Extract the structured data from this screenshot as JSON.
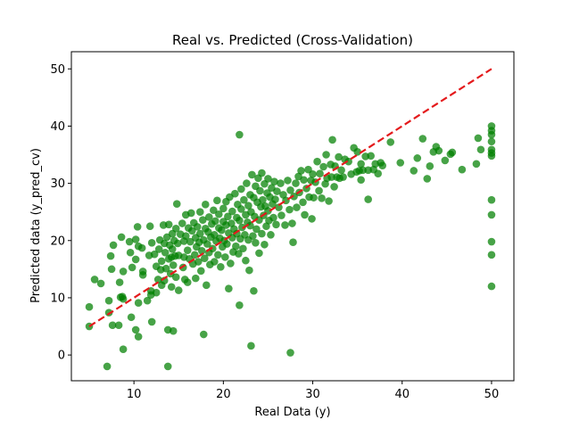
{
  "chart_data": {
    "type": "scatter",
    "title": "Real vs. Predicted (Cross-Validation)",
    "xlabel": "Real Data (y)",
    "ylabel": "Predicted data (y_pred_cv)",
    "xlim": [
      3,
      52.5
    ],
    "ylim": [
      -4.5,
      53
    ],
    "xticks": [
      10,
      20,
      30,
      40,
      50
    ],
    "yticks": [
      0,
      10,
      20,
      30,
      40,
      50
    ],
    "grid": false,
    "colors": {
      "points": "#008000",
      "reference": "#e41a1c"
    },
    "series": [
      {
        "kind": "points",
        "points": [
          [
            5.0,
            8.4
          ],
          [
            5.0,
            5.0
          ],
          [
            5.6,
            13.2
          ],
          [
            6.3,
            12.5
          ],
          [
            7.0,
            -2.0
          ],
          [
            7.2,
            9.5
          ],
          [
            7.2,
            7.4
          ],
          [
            7.4,
            17.3
          ],
          [
            7.5,
            15.0
          ],
          [
            7.6,
            5.2
          ],
          [
            7.7,
            19.2
          ],
          [
            8.3,
            5.2
          ],
          [
            8.4,
            12.7
          ],
          [
            8.5,
            10.1
          ],
          [
            8.6,
            20.6
          ],
          [
            8.7,
            10.2
          ],
          [
            8.8,
            14.6
          ],
          [
            8.8,
            9.8
          ],
          [
            8.8,
            1.0
          ],
          [
            9.5,
            19.8
          ],
          [
            9.6,
            17.9
          ],
          [
            9.7,
            6.6
          ],
          [
            9.8,
            15.3
          ],
          [
            10.2,
            4.4
          ],
          [
            10.2,
            20.2
          ],
          [
            10.2,
            16.7
          ],
          [
            10.4,
            22.4
          ],
          [
            10.5,
            19.0
          ],
          [
            10.5,
            3.2
          ],
          [
            10.5,
            9.1
          ],
          [
            10.9,
            18.7
          ],
          [
            11.0,
            14.6
          ],
          [
            11.0,
            14.0
          ],
          [
            11.5,
            9.5
          ],
          [
            11.7,
            17.4
          ],
          [
            11.8,
            22.5
          ],
          [
            11.9,
            11.2
          ],
          [
            11.9,
            10.5
          ],
          [
            12.0,
            19.6
          ],
          [
            12.0,
            5.8
          ],
          [
            12.3,
            17.6
          ],
          [
            12.5,
            10.9
          ],
          [
            12.5,
            15.5
          ],
          [
            12.7,
            13.2
          ],
          [
            12.8,
            18.5
          ],
          [
            12.9,
            20.1
          ],
          [
            13.0,
            14.9
          ],
          [
            13.1,
            16.4
          ],
          [
            13.1,
            12.2
          ],
          [
            13.3,
            22.7
          ],
          [
            13.4,
            19.5
          ],
          [
            13.4,
            13.0
          ],
          [
            13.5,
            17.9
          ],
          [
            13.6,
            15.1
          ],
          [
            13.7,
            20.6
          ],
          [
            13.8,
            4.4
          ],
          [
            13.8,
            -2.0
          ],
          [
            13.9,
            22.8
          ],
          [
            13.9,
            16.8
          ],
          [
            14.0,
            19.2
          ],
          [
            14.1,
            14.2
          ],
          [
            14.2,
            17.1
          ],
          [
            14.2,
            11.9
          ],
          [
            14.3,
            21.2
          ],
          [
            14.3,
            18.5
          ],
          [
            14.4,
            4.2
          ],
          [
            14.4,
            15.7
          ],
          [
            14.5,
            20.0
          ],
          [
            14.6,
            17.3
          ],
          [
            14.7,
            13.6
          ],
          [
            14.7,
            22.1
          ],
          [
            14.8,
            26.4
          ],
          [
            14.9,
            19.5
          ],
          [
            15.0,
            11.3
          ],
          [
            15.0,
            17.4
          ],
          [
            15.2,
            21.1
          ],
          [
            15.4,
            23.0
          ],
          [
            15.5,
            15.3
          ],
          [
            15.6,
            19.9
          ],
          [
            15.6,
            17.1
          ],
          [
            15.7,
            13.2
          ],
          [
            15.8,
            20.8
          ],
          [
            15.8,
            24.5
          ],
          [
            16.0,
            18.3
          ],
          [
            16.0,
            12.7
          ],
          [
            16.1,
            22.2
          ],
          [
            16.2,
            16.8
          ],
          [
            16.3,
            19.8
          ],
          [
            16.4,
            24.8
          ],
          [
            16.5,
            21.7
          ],
          [
            16.6,
            15.9
          ],
          [
            16.7,
            23.1
          ],
          [
            16.8,
            17.5
          ],
          [
            16.9,
            20.5
          ],
          [
            16.9,
            13.4
          ],
          [
            17.0,
            18.9
          ],
          [
            17.1,
            22.4
          ],
          [
            17.2,
            16.3
          ],
          [
            17.3,
            19.7
          ],
          [
            17.4,
            25.0
          ],
          [
            17.4,
            21.2
          ],
          [
            17.5,
            14.7
          ],
          [
            17.6,
            18.2
          ],
          [
            17.7,
            23.6
          ],
          [
            17.8,
            20.1
          ],
          [
            17.8,
            3.6
          ],
          [
            17.9,
            16.9
          ],
          [
            18.0,
            22.1
          ],
          [
            18.0,
            26.3
          ],
          [
            18.1,
            12.2
          ],
          [
            18.2,
            19.4
          ],
          [
            18.3,
            21.5
          ],
          [
            18.4,
            17.9
          ],
          [
            18.4,
            24.1
          ],
          [
            18.5,
            15.8
          ],
          [
            18.6,
            20.6
          ],
          [
            18.7,
            22.9
          ],
          [
            18.8,
            18.6
          ],
          [
            18.9,
            25.3
          ],
          [
            19.0,
            21.0
          ],
          [
            19.0,
            16.3
          ],
          [
            19.1,
            23.4
          ],
          [
            19.2,
            19.9
          ],
          [
            19.3,
            27.0
          ],
          [
            19.4,
            17.5
          ],
          [
            19.5,
            22.2
          ],
          [
            19.5,
            24.6
          ],
          [
            19.6,
            20.4
          ],
          [
            19.7,
            15.4
          ],
          [
            19.8,
            21.8
          ],
          [
            19.9,
            18.9
          ],
          [
            20.0,
            25.6
          ],
          [
            20.0,
            23.3
          ],
          [
            20.1,
            20.0
          ],
          [
            20.2,
            17.1
          ],
          [
            20.3,
            22.7
          ],
          [
            20.3,
            26.8
          ],
          [
            20.4,
            19.4
          ],
          [
            20.5,
            24.2
          ],
          [
            20.6,
            21.3
          ],
          [
            20.6,
            11.6
          ],
          [
            20.7,
            27.6
          ],
          [
            20.8,
            16.0
          ],
          [
            20.9,
            23.0
          ],
          [
            21.0,
            20.5
          ],
          [
            21.0,
            25.1
          ],
          [
            21.1,
            18.0
          ],
          [
            21.2,
            22.0
          ],
          [
            21.3,
            28.2
          ],
          [
            21.4,
            19.0
          ],
          [
            21.5,
            24.0
          ],
          [
            21.5,
            21.2
          ],
          [
            21.6,
            26.3
          ],
          [
            21.7,
            17.7
          ],
          [
            21.8,
            38.5
          ],
          [
            21.8,
            23.5
          ],
          [
            21.8,
            8.7
          ],
          [
            21.9,
            20.3
          ],
          [
            22.0,
            29.0
          ],
          [
            22.0,
            25.5
          ],
          [
            22.1,
            22.3
          ],
          [
            22.2,
            18.6
          ],
          [
            22.3,
            27.1
          ],
          [
            22.4,
            21.0
          ],
          [
            22.5,
            24.5
          ],
          [
            22.5,
            16.5
          ],
          [
            22.6,
            30.0
          ],
          [
            22.7,
            23.2
          ],
          [
            22.8,
            26.1
          ],
          [
            22.8,
            20.1
          ],
          [
            22.9,
            14.8
          ],
          [
            23.0,
            28.0
          ],
          [
            23.0,
            22.6
          ],
          [
            23.1,
            1.6
          ],
          [
            23.1,
            25.0
          ],
          [
            23.2,
            31.5
          ],
          [
            23.3,
            20.8
          ],
          [
            23.4,
            27.5
          ],
          [
            23.4,
            11.2
          ],
          [
            23.5,
            24.2
          ],
          [
            23.6,
            29.5
          ],
          [
            23.6,
            19.6
          ],
          [
            23.7,
            22.0
          ],
          [
            23.8,
            26.7
          ],
          [
            23.9,
            30.9
          ],
          [
            24.0,
            23.6
          ],
          [
            24.0,
            17.8
          ],
          [
            24.1,
            28.7
          ],
          [
            24.2,
            25.9
          ],
          [
            24.3,
            21.2
          ],
          [
            24.3,
            31.8
          ],
          [
            24.4,
            27.1
          ],
          [
            24.5,
            24.4
          ],
          [
            24.6,
            29.9
          ],
          [
            24.6,
            19.3
          ],
          [
            24.7,
            26.0
          ],
          [
            24.8,
            22.5
          ],
          [
            24.9,
            28.3
          ],
          [
            25.0,
            30.8
          ],
          [
            25.0,
            25.2
          ],
          [
            25.1,
            23.5
          ],
          [
            25.2,
            27.6
          ],
          [
            25.3,
            21.0
          ],
          [
            25.4,
            29.2
          ],
          [
            25.5,
            26.4
          ],
          [
            25.6,
            24.0
          ],
          [
            25.7,
            30.3
          ],
          [
            25.8,
            27.2
          ],
          [
            25.9,
            22.8
          ],
          [
            26.0,
            28.6
          ],
          [
            26.2,
            25.8
          ],
          [
            26.4,
            30.0
          ],
          [
            26.5,
            24.4
          ],
          [
            26.7,
            28.0
          ],
          [
            26.9,
            22.7
          ],
          [
            27.0,
            27.0
          ],
          [
            27.2,
            30.5
          ],
          [
            27.4,
            25.4
          ],
          [
            27.5,
            0.4
          ],
          [
            27.5,
            28.8
          ],
          [
            27.7,
            23.0
          ],
          [
            27.8,
            19.7
          ],
          [
            27.9,
            27.7
          ],
          [
            28.1,
            30.0
          ],
          [
            28.2,
            25.8
          ],
          [
            28.4,
            31.2
          ],
          [
            28.5,
            28.4
          ],
          [
            28.7,
            32.2
          ],
          [
            28.9,
            26.7
          ],
          [
            29.0,
            30.6
          ],
          [
            29.1,
            24.5
          ],
          [
            29.3,
            29.1
          ],
          [
            29.5,
            32.4
          ],
          [
            29.6,
            27.6
          ],
          [
            29.8,
            30.5
          ],
          [
            29.9,
            23.8
          ],
          [
            30.0,
            31.6
          ],
          [
            30.1,
            27.5
          ],
          [
            30.3,
            30.2
          ],
          [
            30.5,
            33.8
          ],
          [
            30.7,
            28.7
          ],
          [
            30.8,
            31.7
          ],
          [
            31.0,
            27.4
          ],
          [
            31.2,
            32.9
          ],
          [
            31.4,
            29.9
          ],
          [
            31.5,
            35.0
          ],
          [
            31.6,
            30.9
          ],
          [
            31.8,
            26.9
          ],
          [
            32.0,
            33.3
          ],
          [
            32.1,
            31.1
          ],
          [
            32.2,
            37.6
          ],
          [
            32.4,
            29.4
          ],
          [
            32.5,
            33.0
          ],
          [
            32.7,
            31.1
          ],
          [
            32.9,
            34.6
          ],
          [
            33.0,
            30.9
          ],
          [
            33.2,
            32.3
          ],
          [
            33.4,
            31.1
          ],
          [
            33.6,
            34.2
          ],
          [
            34.0,
            33.8
          ],
          [
            34.3,
            31.6
          ],
          [
            34.6,
            36.2
          ],
          [
            34.9,
            32.0
          ],
          [
            35.0,
            35.5
          ],
          [
            35.2,
            32.2
          ],
          [
            35.4,
            30.6
          ],
          [
            35.4,
            33.4
          ],
          [
            35.6,
            32.3
          ],
          [
            35.9,
            34.7
          ],
          [
            36.2,
            27.2
          ],
          [
            36.2,
            32.3
          ],
          [
            36.5,
            34.8
          ],
          [
            36.8,
            32.4
          ],
          [
            37.0,
            33.4
          ],
          [
            37.3,
            31.7
          ],
          [
            37.6,
            33.6
          ],
          [
            37.8,
            33.1
          ],
          [
            38.7,
            37.2
          ],
          [
            39.8,
            33.6
          ],
          [
            41.3,
            32.2
          ],
          [
            41.7,
            34.4
          ],
          [
            42.3,
            37.8
          ],
          [
            42.8,
            30.8
          ],
          [
            43.1,
            33.0
          ],
          [
            43.5,
            35.5
          ],
          [
            43.8,
            36.4
          ],
          [
            44.1,
            35.7
          ],
          [
            44.8,
            34.0
          ],
          [
            45.4,
            35.1
          ],
          [
            45.6,
            35.4
          ],
          [
            46.7,
            32.4
          ],
          [
            48.3,
            33.4
          ],
          [
            48.5,
            37.9
          ],
          [
            48.8,
            35.9
          ],
          [
            50.0,
            40.0
          ],
          [
            50.0,
            39.2
          ],
          [
            50.0,
            38.5
          ],
          [
            50.0,
            37.3
          ],
          [
            50.0,
            35.9
          ],
          [
            50.0,
            35.3
          ],
          [
            50.0,
            34.8
          ],
          [
            50.0,
            27.1
          ],
          [
            50.0,
            24.5
          ],
          [
            50.0,
            19.8
          ],
          [
            50.0,
            17.5
          ],
          [
            50.0,
            12.0
          ]
        ]
      },
      {
        "kind": "reference-line",
        "style": "dashed",
        "x": [
          5,
          50
        ],
        "y": [
          5,
          50
        ]
      }
    ]
  }
}
